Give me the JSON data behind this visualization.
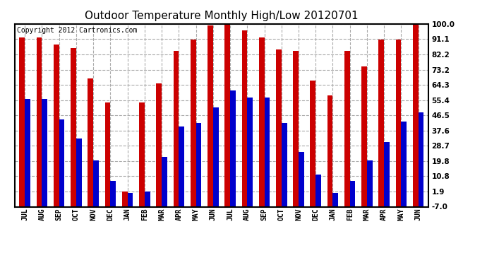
{
  "title": "Outdoor Temperature Monthly High/Low 20120701",
  "copyright": "Copyright 2012 Cartronics.com",
  "months": [
    "JUL",
    "AUG",
    "SEP",
    "OCT",
    "NOV",
    "DEC",
    "JAN",
    "FEB",
    "MAR",
    "APR",
    "MAY",
    "JUN",
    "JUL",
    "AUG",
    "SEP",
    "OCT",
    "NOV",
    "DEC",
    "JAN",
    "FEB",
    "MAR",
    "APR",
    "MAY",
    "JUN"
  ],
  "highs": [
    92,
    92,
    88,
    86,
    68,
    54,
    2,
    54,
    65,
    84,
    91,
    99,
    100,
    96,
    92,
    85,
    84,
    67,
    58,
    84,
    75,
    91,
    91,
    100
  ],
  "lows": [
    56,
    56,
    44,
    33,
    20,
    8,
    1,
    2,
    22,
    40,
    42,
    51,
    61,
    57,
    57,
    42,
    25,
    12,
    1,
    8,
    20,
    31,
    43,
    48
  ],
  "high_color": "#cc0000",
  "low_color": "#0000cc",
  "bg_color": "#ffffff",
  "ymin": -7.0,
  "ymax": 100.0,
  "yticks": [
    -7.0,
    1.9,
    10.8,
    19.8,
    28.7,
    37.6,
    46.5,
    55.4,
    64.3,
    73.2,
    82.2,
    91.1,
    100.0
  ],
  "ytick_labels": [
    "-7.0",
    "1.9",
    "10.8",
    "19.8",
    "28.7",
    "37.6",
    "46.5",
    "55.4",
    "64.3",
    "73.2",
    "82.2",
    "91.1",
    "100.0"
  ],
  "title_fontsize": 11,
  "copyright_fontsize": 7,
  "bar_width": 0.32
}
